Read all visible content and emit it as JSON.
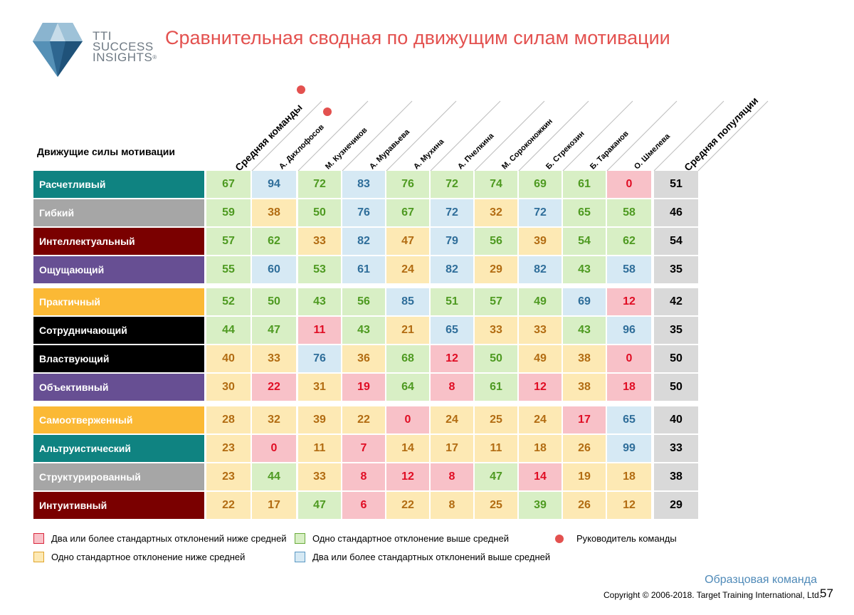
{
  "logo": {
    "lines": [
      "TTI",
      "SUCCESS",
      "INSIGHTS"
    ],
    "reg": "®"
  },
  "title": "Сравнительная сводная по движущим силам мотивации",
  "row_header": "Движущие силы мотивации",
  "columns": {
    "team_avg": "Средняя команды",
    "people": [
      "А. Дихлофосов",
      "М. Кузнечиков",
      "А. Муравьева",
      "А. Мухина",
      "А. Пчелкина",
      "М. Сороконожкин",
      "Б. Стрекозин",
      "Б. Тараканов",
      "О. Шмелева"
    ],
    "population_avg": "Средняя популяции",
    "leader_index": 0
  },
  "colors": {
    "low2": "#f8c1c8",
    "low1": "#fde9b4",
    "high1": "#d8efc5",
    "high2": "#d6e9f4",
    "text_low2": "#e00d24",
    "text_low1": "#b26c12",
    "text_high1": "#4e9a21",
    "text_high2": "#2f6e9a",
    "accent": "#e3514f"
  },
  "rows": [
    {
      "label": "Расчетливый",
      "color": "#0f8381",
      "avg": "67",
      "avg_cls": "high1",
      "values": [
        "94",
        "72",
        "83",
        "76",
        "72",
        "74",
        "69",
        "61",
        "0"
      ],
      "cls": [
        "high2",
        "high1",
        "high2",
        "high1",
        "high1",
        "high1",
        "high1",
        "high1",
        "low2"
      ],
      "pop": "51"
    },
    {
      "label": "Гибкий",
      "color": "#a6a6a6",
      "avg": "59",
      "avg_cls": "high1",
      "values": [
        "38",
        "50",
        "76",
        "67",
        "72",
        "32",
        "72",
        "65",
        "58"
      ],
      "cls": [
        "low1",
        "high1",
        "high2",
        "high1",
        "high2",
        "low1",
        "high2",
        "high1",
        "high1"
      ],
      "pop": "46"
    },
    {
      "label": "Интеллектуальный",
      "color": "#7a0000",
      "avg": "57",
      "avg_cls": "high1",
      "values": [
        "62",
        "33",
        "82",
        "47",
        "79",
        "56",
        "39",
        "54",
        "62"
      ],
      "cls": [
        "high1",
        "low1",
        "high2",
        "low1",
        "high2",
        "high1",
        "low1",
        "high1",
        "high1"
      ],
      "pop": "54"
    },
    {
      "label": "Ощущающий",
      "color": "#674f93",
      "avg": "55",
      "avg_cls": "high1",
      "values": [
        "60",
        "53",
        "61",
        "24",
        "82",
        "29",
        "82",
        "43",
        "58"
      ],
      "cls": [
        "high2",
        "high1",
        "high2",
        "low1",
        "high2",
        "low1",
        "high2",
        "high1",
        "high2"
      ],
      "pop": "35"
    },
    {
      "label": "Практичный",
      "color": "#fbb935",
      "avg": "52",
      "avg_cls": "high1",
      "values": [
        "50",
        "43",
        "56",
        "85",
        "51",
        "57",
        "49",
        "69",
        "12"
      ],
      "cls": [
        "high1",
        "high1",
        "high1",
        "high2",
        "high1",
        "high1",
        "high1",
        "high2",
        "low2"
      ],
      "pop": "42"
    },
    {
      "label": "Сотрудничающий",
      "color": "#000000",
      "avg": "44",
      "avg_cls": "high1",
      "values": [
        "47",
        "11",
        "43",
        "21",
        "65",
        "33",
        "33",
        "43",
        "96"
      ],
      "cls": [
        "high1",
        "low2",
        "high1",
        "low1",
        "high2",
        "low1",
        "low1",
        "high1",
        "high2"
      ],
      "pop": "35"
    },
    {
      "label": "Властвующий",
      "color": "#000000",
      "avg": "40",
      "avg_cls": "low1",
      "values": [
        "33",
        "76",
        "36",
        "68",
        "12",
        "50",
        "49",
        "38",
        "0"
      ],
      "cls": [
        "low1",
        "high2",
        "low1",
        "high1",
        "low2",
        "high1",
        "low1",
        "low1",
        "low2"
      ],
      "pop": "50"
    },
    {
      "label": "Объективный",
      "color": "#674f93",
      "avg": "30",
      "avg_cls": "low1",
      "values": [
        "22",
        "31",
        "19",
        "64",
        "8",
        "61",
        "12",
        "38",
        "18"
      ],
      "cls": [
        "low2",
        "low1",
        "low2",
        "high1",
        "low2",
        "high1",
        "low2",
        "low1",
        "low2"
      ],
      "pop": "50"
    },
    {
      "label": "Самоотверженный",
      "color": "#fbb935",
      "avg": "28",
      "avg_cls": "low1",
      "values": [
        "32",
        "39",
        "22",
        "0",
        "24",
        "25",
        "24",
        "17",
        "65"
      ],
      "cls": [
        "low1",
        "low1",
        "low1",
        "low2",
        "low1",
        "low1",
        "low1",
        "low2",
        "high2"
      ],
      "pop": "40"
    },
    {
      "label": "Альтруистический",
      "color": "#0f8381",
      "avg": "23",
      "avg_cls": "low1",
      "values": [
        "0",
        "11",
        "7",
        "14",
        "17",
        "11",
        "18",
        "26",
        "99"
      ],
      "cls": [
        "low2",
        "low1",
        "low2",
        "low1",
        "low1",
        "low1",
        "low1",
        "low1",
        "high2"
      ],
      "pop": "33"
    },
    {
      "label": "Структурированный",
      "color": "#a6a6a6",
      "avg": "23",
      "avg_cls": "low1",
      "values": [
        "44",
        "33",
        "8",
        "12",
        "8",
        "47",
        "14",
        "19",
        "18"
      ],
      "cls": [
        "high1",
        "low1",
        "low2",
        "low2",
        "low2",
        "high1",
        "low2",
        "low1",
        "low1"
      ],
      "pop": "38"
    },
    {
      "label": "Интуитивный",
      "color": "#7a0000",
      "avg": "22",
      "avg_cls": "low1",
      "values": [
        "17",
        "47",
        "6",
        "22",
        "8",
        "25",
        "39",
        "26",
        "12"
      ],
      "cls": [
        "low1",
        "high1",
        "low2",
        "low1",
        "low1",
        "low1",
        "high1",
        "low1",
        "low1"
      ],
      "pop": "29"
    }
  ],
  "legend": {
    "low2": "Два или более стандартных отклонений ниже средней",
    "high1": "Одно стандартное отклонение выше средней",
    "leader": "Руководитель команды",
    "low1": "Одно стандартное отклонение ниже средней",
    "high2": "Два или более стандартных отклонений выше средней"
  },
  "footer": {
    "team": "Образцовая команда",
    "copyright": "Copyright © 2006-2018. Target Training International, Ltd.",
    "page": "57"
  }
}
